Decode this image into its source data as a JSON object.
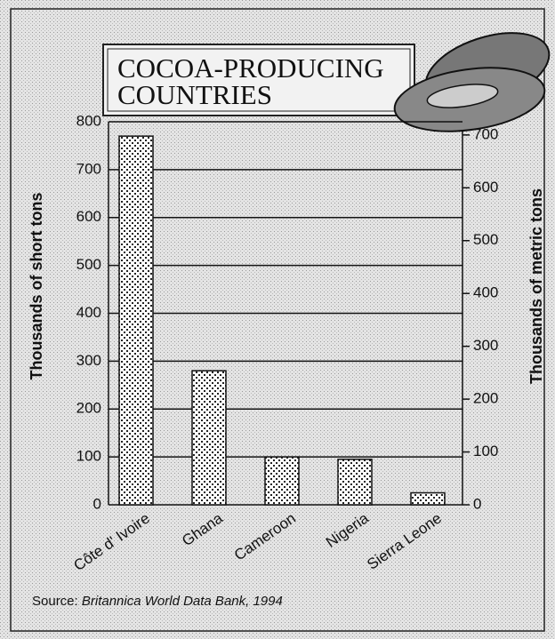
{
  "chart_data": {
    "type": "bar",
    "title": "COCOA-PRODUCING COUNTRIES",
    "categories": [
      "Côte d' Ivoire",
      "Ghana",
      "Cameroon",
      "Nigeria",
      "Sierra Leone"
    ],
    "values": [
      770,
      280,
      100,
      95,
      25
    ],
    "ylim": [
      0,
      800
    ],
    "yticks": [
      0,
      100,
      200,
      300,
      400,
      500,
      600,
      700,
      800
    ],
    "y2lim": [
      0,
      725
    ],
    "y2ticks": [
      0,
      100,
      200,
      300,
      400,
      500,
      600,
      700
    ],
    "ylabel": "Thousands of short tons",
    "y2label": "Thousands of metric tons",
    "grid": true,
    "color": "#ffffff",
    "source_label": "Source:",
    "source": "Britannica World Data Bank, 1994"
  }
}
